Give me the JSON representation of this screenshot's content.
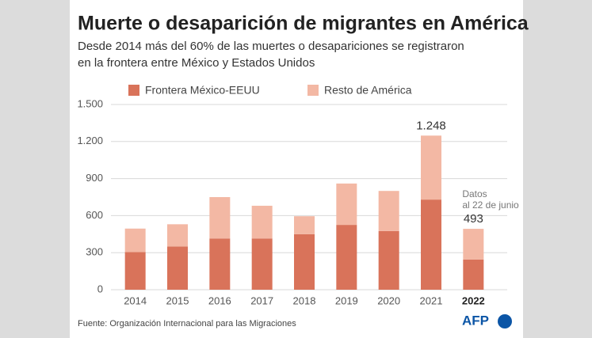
{
  "chart_data": {
    "type": "stacked-bar",
    "title": "Muerte o desaparición de migrantes en América",
    "subtitle": [
      "Desde 2014 más del 60% de las muertes o desapariciones se registraron",
      "en la frontera entre México y Estados Unidos"
    ],
    "categories": [
      "2014",
      "2015",
      "2016",
      "2017",
      "2018",
      "2019",
      "2020",
      "2021",
      "2022"
    ],
    "series": [
      {
        "name": "Frontera México-EEUU",
        "color": "#d9735a",
        "values": [
          305,
          350,
          415,
          415,
          450,
          525,
          475,
          730,
          245
        ]
      },
      {
        "name": "Resto de América",
        "color": "#f3b8a4",
        "values": [
          190,
          180,
          335,
          265,
          145,
          335,
          325,
          518,
          248
        ]
      }
    ],
    "total_labels": [
      null,
      null,
      null,
      null,
      null,
      null,
      null,
      {
        "value": 1248,
        "label": "1.248"
      },
      493
    ],
    "annotation": [
      "Datos",
      "al 22 de junio"
    ],
    "ylim": [
      0,
      1500
    ],
    "yticks": [
      0,
      300,
      600,
      900,
      {
        "value": 1200,
        "label": "1.200"
      },
      {
        "value": 1500,
        "label": "1.500"
      }
    ],
    "grid": true,
    "source": "Fuente: Organización Internacional para las Migraciones",
    "logo": "AFP"
  }
}
